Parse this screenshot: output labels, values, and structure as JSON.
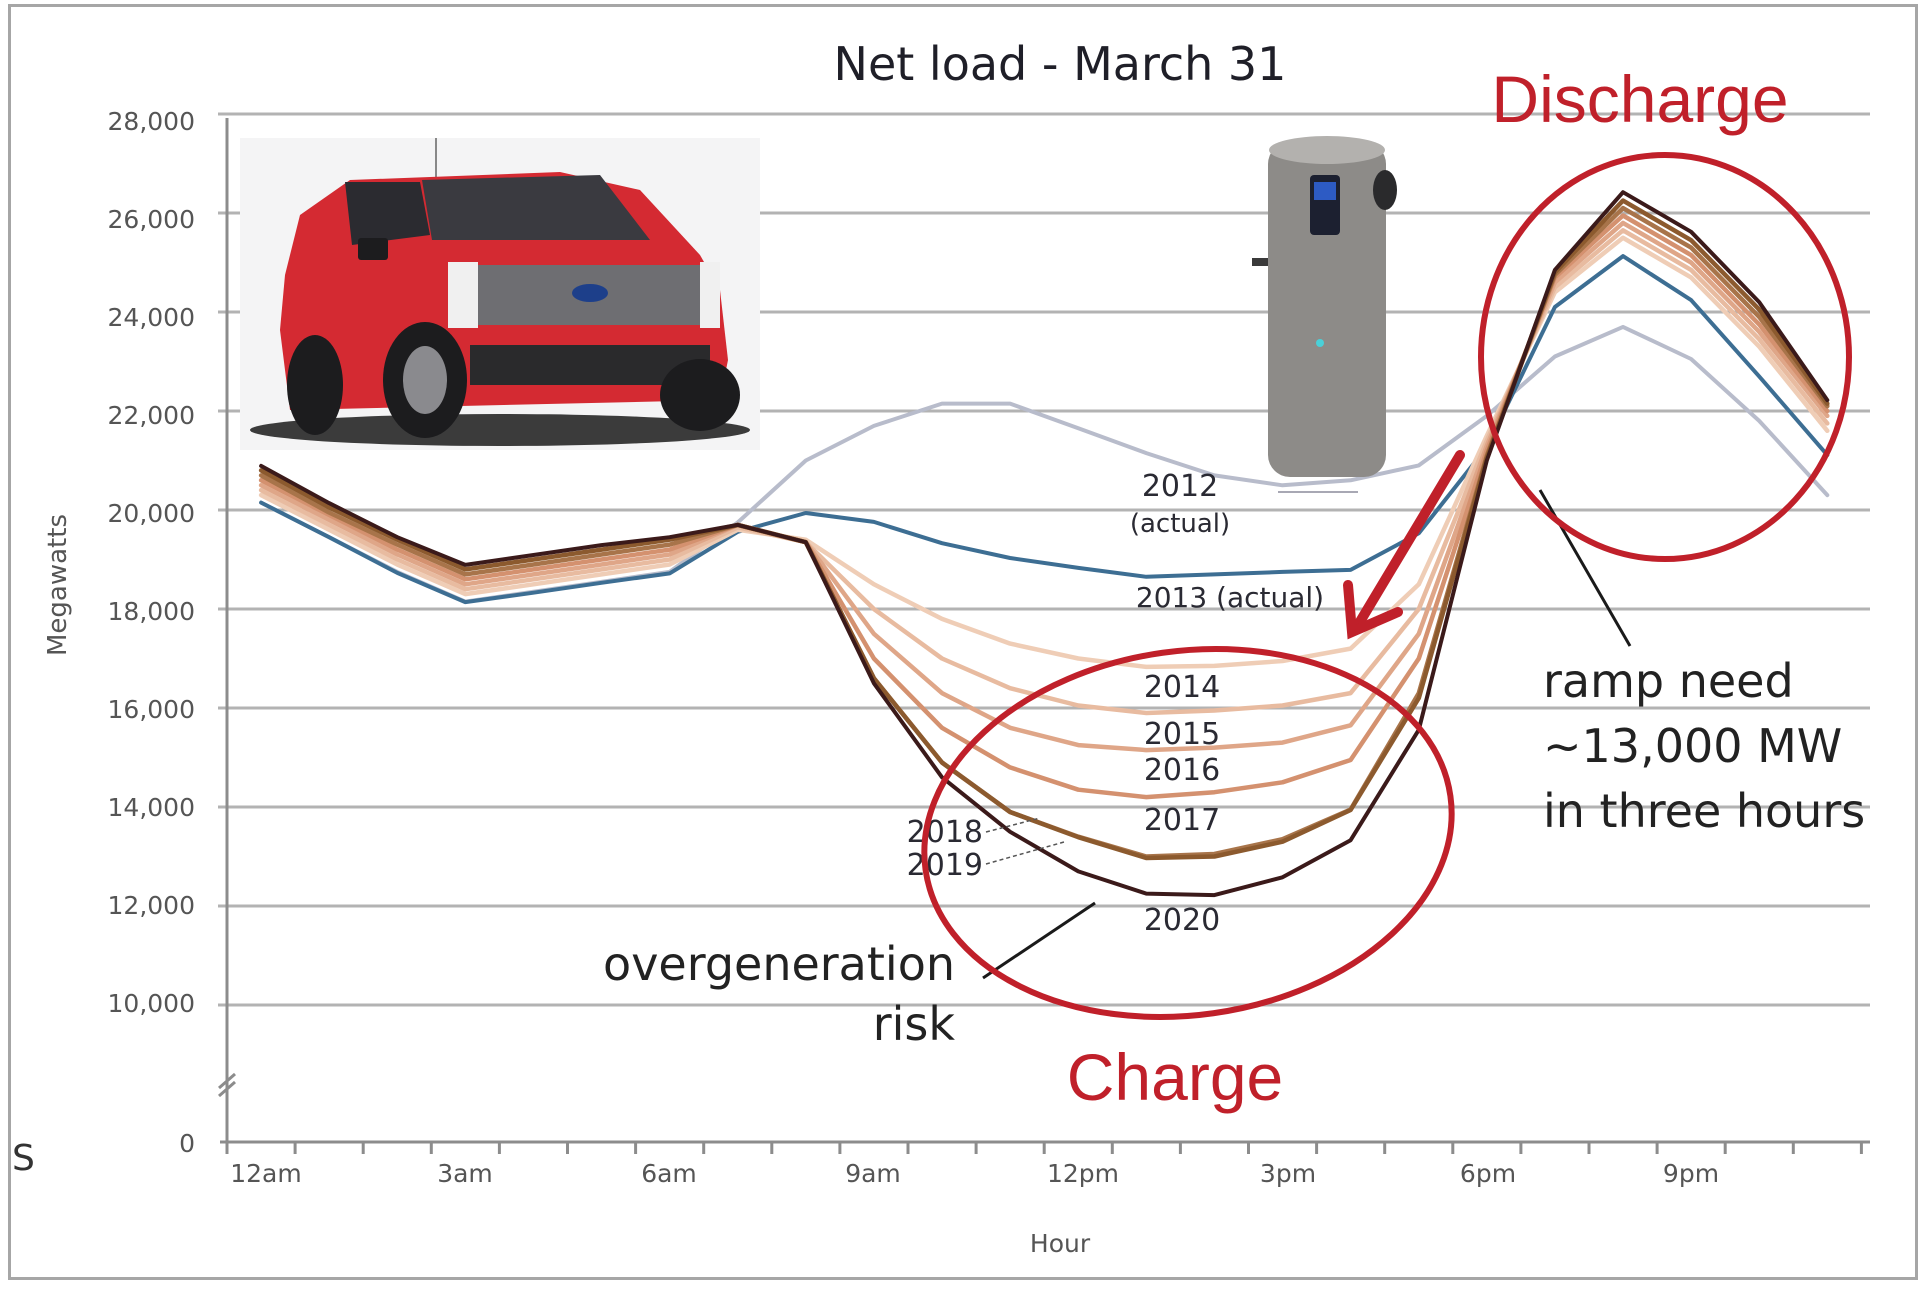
{
  "chart": {
    "title": "Net load - March 31",
    "xlabel": "Hour",
    "ylabel": "Megawatts",
    "left_edge_letter": "S",
    "y_ticks": [
      "28,000",
      "26,000",
      "24,000",
      "22,000",
      "20,000",
      "18,000",
      "16,000",
      "14,000",
      "12,000",
      "10,000",
      "0"
    ],
    "x_ticks": [
      "12am",
      "3am",
      "6am",
      "9am",
      "12pm",
      "3pm",
      "6pm",
      "9pm"
    ],
    "series_labels": {
      "y2012": "2012",
      "y2012b": "(actual)",
      "y2013": "2013 (actual)",
      "y2014": "2014",
      "y2015": "2015",
      "y2016": "2016",
      "y2017": "2017",
      "y2018": "2018",
      "y2019": "2019",
      "y2020": "2020"
    },
    "annotations": {
      "discharge": "Discharge",
      "charge": "Charge",
      "ramp1": "ramp need",
      "ramp2": "~13,000 MW",
      "ramp3": "in three hours",
      "overgen1": "overgeneration",
      "overgen2": "risk"
    },
    "images": [
      "electric-pickup-truck-photo",
      "heat-pump-water-heater-photo"
    ],
    "colors": {
      "2012": "#b8bccb",
      "2013": "#3d6e93",
      "2014": "#efcdb6",
      "2015": "#e8bba0",
      "2016": "#dfa688",
      "2017": "#d4916f",
      "2018": "#a8744a",
      "2019": "#8c5a2e",
      "2020": "#3b1a1a",
      "annotation_red": "#c0202a"
    }
  },
  "chart_data": {
    "type": "line",
    "title": "Net load - March 31",
    "xlabel": "Hour",
    "ylabel": "Megawatts",
    "ylim": [
      0,
      28000
    ],
    "y_axis_break": "between 0 and 10,000",
    "grid": true,
    "x": [
      0.5,
      1.5,
      2.5,
      3.5,
      4.5,
      5.5,
      6.5,
      7.5,
      8.5,
      9.5,
      10.5,
      11.5,
      12.5,
      13.5,
      14.5,
      15.5,
      16.5,
      17.5,
      18.5,
      19.5,
      20.5,
      21.5,
      22.5,
      23.5
    ],
    "x_tick_labels": [
      "12am",
      "3am",
      "6am",
      "9am",
      "12pm",
      "3pm",
      "6pm",
      "9pm"
    ],
    "series": [
      {
        "name": "2012 (actual)",
        "values": [
          20150,
          19450,
          18750,
          18150,
          18350,
          18550,
          18750,
          19750,
          21000,
          21700,
          22150,
          22150,
          21650,
          21150,
          20700,
          20500,
          20600,
          20900,
          21900,
          23100,
          23700,
          23050,
          21800,
          20300
        ]
      },
      {
        "name": "2013 (actual)",
        "values": [
          20150,
          19450,
          18730,
          18140,
          18330,
          18530,
          18720,
          19560,
          19940,
          19760,
          19330,
          19030,
          18830,
          18650,
          18700,
          18750,
          18790,
          19530,
          21270,
          24100,
          25130,
          24240,
          22700,
          21110
        ]
      },
      {
        "name": "2014",
        "values": [
          20300,
          19600,
          18900,
          18300,
          18500,
          18700,
          18900,
          19600,
          19400,
          18500,
          17800,
          17300,
          17000,
          16830,
          16850,
          16950,
          17200,
          18500,
          21500,
          24400,
          25500,
          24700,
          23300,
          21600
        ]
      },
      {
        "name": "2015",
        "values": [
          20400,
          19700,
          19000,
          18400,
          18600,
          18800,
          19000,
          19650,
          19350,
          18000,
          17000,
          16400,
          16050,
          15900,
          15950,
          16050,
          16300,
          18000,
          21400,
          24500,
          25650,
          24850,
          23450,
          21750
        ]
      },
      {
        "name": "2016",
        "values": [
          20500,
          19800,
          19100,
          18500,
          18700,
          18900,
          19100,
          19700,
          19350,
          17500,
          16300,
          15600,
          15250,
          15150,
          15200,
          15300,
          15650,
          17500,
          21300,
          24600,
          25800,
          25000,
          23600,
          21900
        ]
      },
      {
        "name": "2017",
        "values": [
          20600,
          19900,
          19200,
          18600,
          18800,
          19000,
          19200,
          19700,
          19350,
          17000,
          15600,
          14800,
          14350,
          14200,
          14300,
          14500,
          14950,
          17000,
          21200,
          24700,
          25950,
          25150,
          23750,
          22000
        ]
      },
      {
        "name": "2018",
        "values": [
          20700,
          19950,
          19300,
          18700,
          18900,
          19100,
          19300,
          19700,
          19350,
          16600,
          14900,
          13900,
          13400,
          13000,
          13050,
          13350,
          13950,
          16300,
          21100,
          24750,
          26100,
          25300,
          23900,
          22100
        ]
      },
      {
        "name": "2019",
        "values": [
          20800,
          20050,
          19400,
          18800,
          19000,
          19200,
          19400,
          19700,
          19350,
          16600,
          14900,
          13900,
          13390,
          12970,
          13000,
          13300,
          13940,
          16200,
          21050,
          24800,
          26250,
          25450,
          24050,
          22150
        ]
      },
      {
        "name": "2020",
        "values": [
          20890,
          20140,
          19450,
          18890,
          19090,
          19290,
          19450,
          19700,
          19350,
          16500,
          14600,
          13500,
          12700,
          12250,
          12220,
          12580,
          13330,
          15560,
          21000,
          24850,
          26420,
          25620,
          24200,
          22220
        ]
      }
    ],
    "annotations": [
      "2012 (actual)",
      "2013 (actual)",
      "2014",
      "2015",
      "2016",
      "2017",
      "2018",
      "2019",
      "2020",
      "overgeneration risk",
      "ramp need ~13,000 MW in three hours",
      "Discharge",
      "Charge"
    ]
  }
}
